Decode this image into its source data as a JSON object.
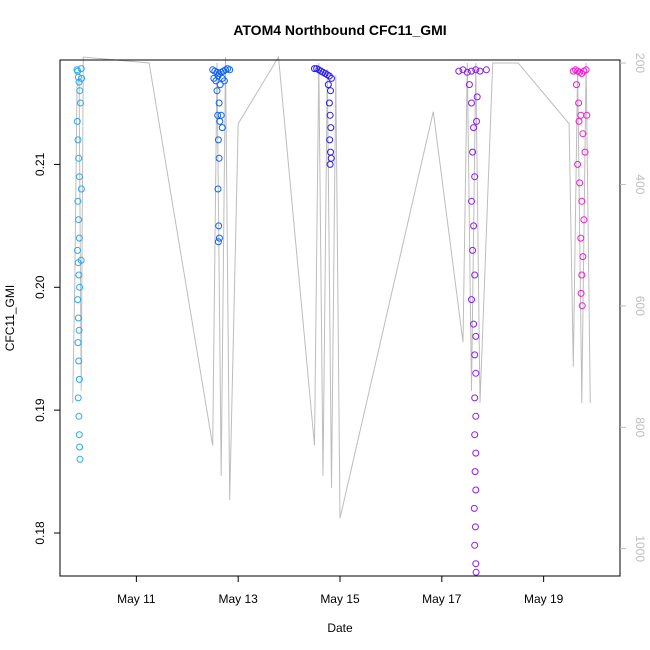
{
  "chart_data": {
    "type": "scatter",
    "title": "ATOM4 Northbound CFC11_GMI",
    "xlabel": "Date",
    "ylabel": "CFC11_GMI",
    "xlim": [
      "2016-05-09T12:00",
      "2016-05-20T12:00"
    ],
    "ylim": [
      0.1765,
      0.2185
    ],
    "x_ticks": [
      {
        "date": "2016-05-11",
        "label": "May 11"
      },
      {
        "date": "2016-05-13",
        "label": "May 13"
      },
      {
        "date": "2016-05-15",
        "label": "May 15"
      },
      {
        "date": "2016-05-17",
        "label": "May 17"
      },
      {
        "date": "2016-05-19",
        "label": "May 19"
      }
    ],
    "y_ticks": [
      0.18,
      0.19,
      0.2,
      0.21
    ],
    "y_tick_labels": [
      "0.18",
      "0.19",
      "0.20",
      "0.21"
    ],
    "right_axis": {
      "color": "#bdbdbd",
      "ylim": [
        1045,
        195
      ],
      "ticks": [
        200,
        400,
        600,
        800,
        1000
      ],
      "tick_labels": [
        "200",
        "400",
        "600",
        "800",
        "1000"
      ]
    },
    "grid": false,
    "legend": "none",
    "series": [
      {
        "color": "#29a8f0",
        "points": [
          [
            "2016-05-09T20:00",
            0.2177
          ],
          [
            "2016-05-09T20:20",
            0.2176
          ],
          [
            "2016-05-09T20:40",
            0.2171
          ],
          [
            "2016-05-09T21:00",
            0.2167
          ],
          [
            "2016-05-09T21:20",
            0.216
          ],
          [
            "2016-05-09T21:40",
            0.215
          ],
          [
            "2016-05-09T20:10",
            0.2135
          ],
          [
            "2016-05-09T20:30",
            0.212
          ],
          [
            "2016-05-09T20:50",
            0.2105
          ],
          [
            "2016-05-09T21:10",
            0.209
          ],
          [
            "2016-05-09T20:25",
            0.207
          ],
          [
            "2016-05-09T20:45",
            0.2055
          ],
          [
            "2016-05-09T21:05",
            0.204
          ],
          [
            "2016-05-09T20:15",
            0.203
          ],
          [
            "2016-05-09T20:35",
            0.202
          ],
          [
            "2016-05-09T20:55",
            0.201
          ],
          [
            "2016-05-09T21:15",
            0.2
          ],
          [
            "2016-05-09T20:20",
            0.199
          ],
          [
            "2016-05-09T20:40",
            0.1975
          ],
          [
            "2016-05-09T21:00",
            0.1965
          ],
          [
            "2016-05-09T20:30",
            0.1955
          ],
          [
            "2016-05-09T20:50",
            0.194
          ],
          [
            "2016-05-09T21:10",
            0.1925
          ],
          [
            "2016-05-09T20:35",
            0.191
          ],
          [
            "2016-05-09T20:55",
            0.1895
          ],
          [
            "2016-05-09T21:05",
            0.188
          ],
          [
            "2016-05-09T21:15",
            0.187
          ],
          [
            "2016-05-09T21:25",
            0.186
          ],
          [
            "2016-05-09T22:00",
            0.2178
          ],
          [
            "2016-05-09T22:10",
            0.217
          ],
          [
            "2016-05-09T22:05",
            0.208
          ],
          [
            "2016-05-09T22:00",
            0.2022
          ]
        ]
      },
      {
        "color": "#0f62f5",
        "points": [
          [
            "2016-05-12T12:00",
            0.2177
          ],
          [
            "2016-05-12T13:00",
            0.2176
          ],
          [
            "2016-05-12T14:00",
            0.2175
          ],
          [
            "2016-05-12T15:00",
            0.2174
          ],
          [
            "2016-05-12T16:00",
            0.2175
          ],
          [
            "2016-05-12T17:00",
            0.2176
          ],
          [
            "2016-05-12T18:00",
            0.2177
          ],
          [
            "2016-05-12T19:00",
            0.2178
          ],
          [
            "2016-05-12T20:00",
            0.2177
          ],
          [
            "2016-05-12T12:30",
            0.217
          ],
          [
            "2016-05-12T13:30",
            0.2168
          ],
          [
            "2016-05-12T14:30",
            0.2172
          ],
          [
            "2016-05-12T15:30",
            0.2165
          ],
          [
            "2016-05-12T16:30",
            0.217
          ],
          [
            "2016-05-12T17:30",
            0.2168
          ],
          [
            "2016-05-12T14:00",
            0.216
          ],
          [
            "2016-05-12T15:00",
            0.215
          ],
          [
            "2016-05-12T14:20",
            0.214
          ],
          [
            "2016-05-12T15:20",
            0.2135
          ],
          [
            "2016-05-12T14:40",
            0.212
          ],
          [
            "2016-05-12T15:00",
            0.2105
          ],
          [
            "2016-05-12T14:30",
            0.208
          ],
          [
            "2016-05-12T14:50",
            0.205
          ],
          [
            "2016-05-12T15:10",
            0.204
          ],
          [
            "2016-05-12T14:40",
            0.2037
          ],
          [
            "2016-05-12T16:00",
            0.214
          ],
          [
            "2016-05-12T16:30",
            0.213
          ]
        ]
      },
      {
        "color": "#2a1bf0",
        "points": [
          [
            "2016-05-14T12:00",
            0.2178
          ],
          [
            "2016-05-14T13:00",
            0.2178
          ],
          [
            "2016-05-14T14:00",
            0.2177
          ],
          [
            "2016-05-14T15:00",
            0.2176
          ],
          [
            "2016-05-14T16:00",
            0.2175
          ],
          [
            "2016-05-14T17:00",
            0.2174
          ],
          [
            "2016-05-14T18:00",
            0.2173
          ],
          [
            "2016-05-14T19:00",
            0.2172
          ],
          [
            "2016-05-14T20:00",
            0.217
          ],
          [
            "2016-05-14T18:30",
            0.2165
          ],
          [
            "2016-05-14T19:30",
            0.216
          ],
          [
            "2016-05-14T19:00",
            0.215
          ],
          [
            "2016-05-14T19:20",
            0.214
          ],
          [
            "2016-05-14T19:40",
            0.213
          ],
          [
            "2016-05-14T19:10",
            0.212
          ],
          [
            "2016-05-14T19:30",
            0.211
          ],
          [
            "2016-05-14T19:50",
            0.2105
          ],
          [
            "2016-05-14T19:20",
            0.21
          ]
        ]
      },
      {
        "color": "#8a1ee8",
        "points": [
          [
            "2016-05-17T08:00",
            0.2176
          ],
          [
            "2016-05-17T10:00",
            0.2177
          ],
          [
            "2016-05-17T12:00",
            0.2175
          ],
          [
            "2016-05-17T14:00",
            0.2176
          ],
          [
            "2016-05-17T16:00",
            0.2177
          ],
          [
            "2016-05-17T18:00",
            0.2176
          ],
          [
            "2016-05-17T21:00",
            0.2177
          ],
          [
            "2016-05-17T13:00",
            0.2165
          ],
          [
            "2016-05-17T14:00",
            0.215
          ],
          [
            "2016-05-17T15:00",
            0.213
          ],
          [
            "2016-05-17T14:30",
            0.211
          ],
          [
            "2016-05-17T15:30",
            0.209
          ],
          [
            "2016-05-17T14:00",
            0.207
          ],
          [
            "2016-05-17T15:00",
            0.205
          ],
          [
            "2016-05-17T14:30",
            0.203
          ],
          [
            "2016-05-17T15:30",
            0.201
          ],
          [
            "2016-05-17T14:00",
            0.199
          ],
          [
            "2016-05-17T15:00",
            0.197
          ],
          [
            "2016-05-17T16:00",
            0.196
          ],
          [
            "2016-05-17T15:30",
            0.1945
          ],
          [
            "2016-05-17T16:00",
            0.193
          ],
          [
            "2016-05-17T15:30",
            0.191
          ],
          [
            "2016-05-17T16:00",
            0.1895
          ],
          [
            "2016-05-17T15:30",
            0.188
          ],
          [
            "2016-05-17T16:00",
            0.1865
          ],
          [
            "2016-05-17T15:40",
            0.185
          ],
          [
            "2016-05-17T16:00",
            0.1835
          ],
          [
            "2016-05-17T15:20",
            0.182
          ],
          [
            "2016-05-17T15:50",
            0.1805
          ],
          [
            "2016-05-17T15:30",
            0.179
          ],
          [
            "2016-05-17T16:00",
            0.1775
          ],
          [
            "2016-05-17T16:10",
            0.1768
          ],
          [
            "2016-05-17T16:20",
            0.2135
          ],
          [
            "2016-05-17T16:40",
            0.2155
          ]
        ]
      },
      {
        "color": "#f31bd1",
        "points": [
          [
            "2016-05-19T14:00",
            0.2176
          ],
          [
            "2016-05-19T15:00",
            0.2177
          ],
          [
            "2016-05-19T16:00",
            0.2176
          ],
          [
            "2016-05-19T17:00",
            0.2175
          ],
          [
            "2016-05-19T18:00",
            0.2174
          ],
          [
            "2016-05-19T19:00",
            0.2176
          ],
          [
            "2016-05-19T20:00",
            0.2177
          ],
          [
            "2016-05-19T15:30",
            0.2165
          ],
          [
            "2016-05-19T16:30",
            0.215
          ],
          [
            "2016-05-19T17:30",
            0.214
          ],
          [
            "2016-05-19T18:30",
            0.2125
          ],
          [
            "2016-05-19T19:30",
            0.211
          ],
          [
            "2016-05-19T16:00",
            0.21
          ],
          [
            "2016-05-19T17:00",
            0.2085
          ],
          [
            "2016-05-19T18:00",
            0.207
          ],
          [
            "2016-05-19T19:00",
            0.2055
          ],
          [
            "2016-05-19T17:30",
            0.204
          ],
          [
            "2016-05-19T18:30",
            0.2025
          ],
          [
            "2016-05-19T18:00",
            0.201
          ],
          [
            "2016-05-19T17:40",
            0.1995
          ],
          [
            "2016-05-19T18:10",
            0.1985
          ],
          [
            "2016-05-19T16:40",
            0.2135
          ],
          [
            "2016-05-19T20:20",
            0.214
          ]
        ]
      }
    ],
    "pressure_profile": {
      "color": "#bdbdbd",
      "note_units": "right axis",
      "points": [
        [
          "2016-05-09T18:00",
          760
        ],
        [
          "2016-05-09T19:00",
          560
        ],
        [
          "2016-05-09T20:00",
          240
        ],
        [
          "2016-05-09T21:00",
          220
        ],
        [
          "2016-05-09T22:00",
          740
        ],
        [
          "2016-05-09T23:00",
          190
        ],
        [
          "2016-05-11T06:00",
          200
        ],
        [
          "2016-05-12T12:00",
          830
        ],
        [
          "2016-05-12T14:00",
          200
        ],
        [
          "2016-05-12T16:00",
          880
        ],
        [
          "2016-05-12T18:00",
          190
        ],
        [
          "2016-05-12T20:00",
          920
        ],
        [
          "2016-05-13T00:00",
          300
        ],
        [
          "2016-05-13T19:00",
          190
        ],
        [
          "2016-05-14T12:00",
          830
        ],
        [
          "2016-05-14T14:00",
          200
        ],
        [
          "2016-05-14T16:00",
          880
        ],
        [
          "2016-05-14T18:00",
          210
        ],
        [
          "2016-05-14T20:00",
          900
        ],
        [
          "2016-05-14T22:00",
          220
        ],
        [
          "2016-05-15T00:00",
          950
        ],
        [
          "2016-05-16T20:00",
          280
        ],
        [
          "2016-05-17T10:00",
          660
        ],
        [
          "2016-05-17T12:00",
          200
        ],
        [
          "2016-05-17T14:00",
          740
        ],
        [
          "2016-05-17T16:00",
          200
        ],
        [
          "2016-05-17T18:00",
          760
        ],
        [
          "2016-05-18T00:00",
          200
        ],
        [
          "2016-05-18T12:00",
          200
        ],
        [
          "2016-05-19T12:00",
          300
        ],
        [
          "2016-05-19T14:00",
          700
        ],
        [
          "2016-05-19T16:00",
          210
        ],
        [
          "2016-05-19T18:00",
          760
        ],
        [
          "2016-05-19T20:00",
          200
        ],
        [
          "2016-05-19T22:00",
          760
        ]
      ]
    }
  }
}
